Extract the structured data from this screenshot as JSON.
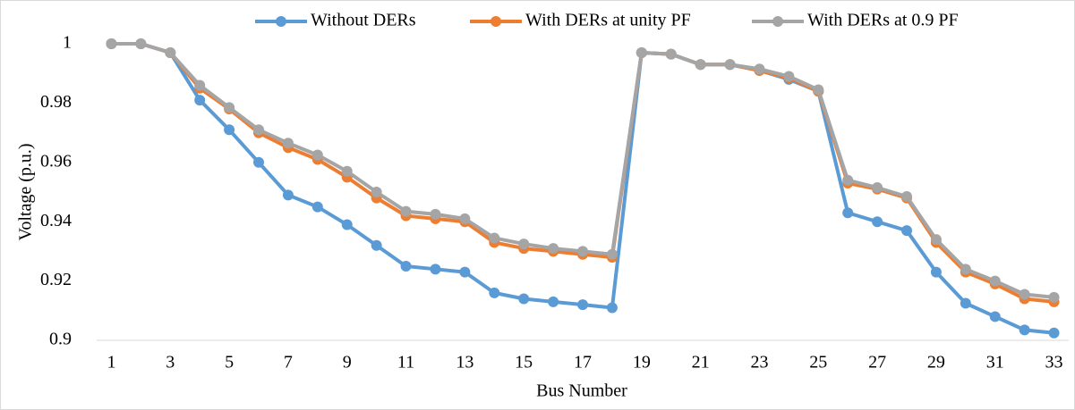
{
  "chart_data": {
    "type": "line",
    "xlabel": "Bus Number",
    "ylabel": "Voltage (p.u.)",
    "categories": [
      "1",
      null,
      "3",
      null,
      "5",
      null,
      "7",
      null,
      "9",
      null,
      "11",
      null,
      "13",
      null,
      "15",
      null,
      "17",
      null,
      "19",
      null,
      "21",
      null,
      "23",
      null,
      "25",
      null,
      "27",
      null,
      "29",
      null,
      "31",
      null,
      "33"
    ],
    "series": [
      {
        "name": "Without DERs",
        "color": "#5b9bd5",
        "values": [
          1,
          1,
          0.997,
          0.981,
          0.971,
          0.96,
          0.949,
          0.945,
          0.939,
          0.932,
          0.925,
          0.924,
          0.923,
          0.916,
          0.914,
          0.913,
          0.912,
          0.911,
          0.997,
          0.9965,
          0.993,
          0.993,
          0.991,
          0.988,
          0.984,
          0.943,
          0.94,
          0.937,
          0.923,
          0.9125,
          0.908,
          0.9035,
          0.9025
        ]
      },
      {
        "name": "With DERs at unity PF",
        "color": "#ed7d31",
        "values": [
          1,
          1,
          0.997,
          0.985,
          0.978,
          0.97,
          0.965,
          0.961,
          0.955,
          0.948,
          0.942,
          0.941,
          0.94,
          0.933,
          0.931,
          0.93,
          0.929,
          0.928,
          0.997,
          0.9965,
          0.993,
          0.993,
          0.991,
          0.9885,
          0.984,
          0.953,
          0.951,
          0.948,
          0.933,
          0.923,
          0.919,
          0.914,
          0.913
        ]
      },
      {
        "name": "With DERs at 0.9 PF",
        "color": "#a5a5a5",
        "values": [
          1,
          1,
          0.997,
          0.986,
          0.9785,
          0.971,
          0.9665,
          0.9625,
          0.957,
          0.95,
          0.9435,
          0.9425,
          0.941,
          0.9345,
          0.9325,
          0.931,
          0.93,
          0.929,
          0.997,
          0.9965,
          0.993,
          0.993,
          0.9915,
          0.989,
          0.9845,
          0.954,
          0.9515,
          0.9485,
          0.934,
          0.924,
          0.92,
          0.9155,
          0.9145
        ]
      }
    ],
    "ylim": [
      0.9,
      1
    ],
    "yticks": [
      0.9,
      0.92,
      0.94,
      0.96,
      0.98,
      1
    ],
    "legend": "top",
    "grid": false
  }
}
